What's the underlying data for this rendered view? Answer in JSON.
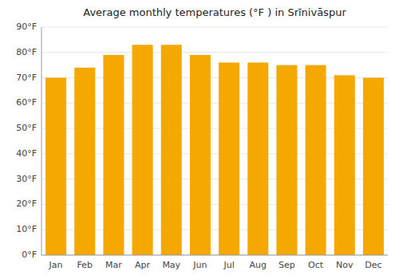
{
  "chart_data": {
    "type": "bar",
    "title": "Average monthly temperatures (°F ) in Srīnivāspur",
    "categories": [
      "Jan",
      "Feb",
      "Mar",
      "Apr",
      "May",
      "Jun",
      "Jul",
      "Aug",
      "Sep",
      "Oct",
      "Nov",
      "Dec"
    ],
    "values": [
      70,
      74,
      79,
      83,
      83,
      79,
      76,
      76,
      75,
      75,
      71,
      70
    ],
    "color": "#F5A800",
    "ylim": [
      0,
      90
    ],
    "yticks": [
      {
        "value": 0,
        "label": "0°F"
      },
      {
        "value": 10,
        "label": "10°F"
      },
      {
        "value": 20,
        "label": "20°F"
      },
      {
        "value": 30,
        "label": "30°F"
      },
      {
        "value": 40,
        "label": "40°F"
      },
      {
        "value": 50,
        "label": "50°F"
      },
      {
        "value": 60,
        "label": "60°F"
      },
      {
        "value": 70,
        "label": "70°F"
      },
      {
        "value": 80,
        "label": "80°F"
      },
      {
        "value": 90,
        "label": "90°F"
      }
    ],
    "grid": true
  }
}
